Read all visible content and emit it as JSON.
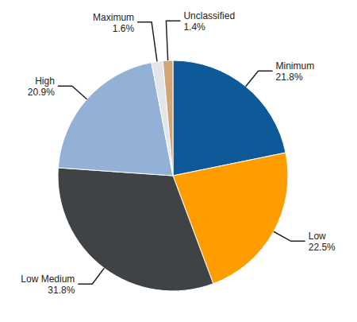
{
  "chart_data": {
    "type": "pie",
    "categories": [
      "Minimum",
      "Low",
      "Low Medium",
      "High",
      "Maximum",
      "Unclassified"
    ],
    "values": [
      21.8,
      22.5,
      31.8,
      20.9,
      1.6,
      1.4
    ],
    "value_labels": [
      "21.8%",
      "22.5%",
      "31.8%",
      "20.9%",
      "1.6%",
      "1.4%"
    ],
    "colors": [
      "#0e5a99",
      "#ff9c00",
      "#404345",
      "#93b1d6",
      "#e3e5e8",
      "#d2a577"
    ],
    "data_labels": true
  }
}
